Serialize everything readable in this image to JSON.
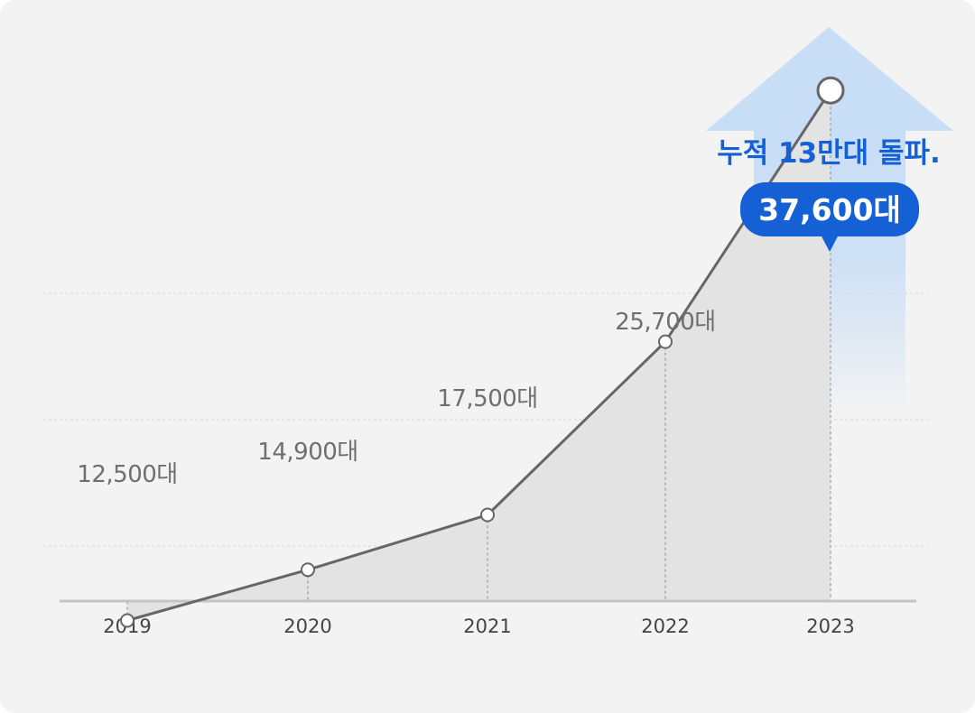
{
  "chart_data": {
    "type": "area",
    "categories": [
      "2019",
      "2020",
      "2021",
      "2022",
      "2023"
    ],
    "values": [
      12500,
      14900,
      17500,
      25700,
      37600
    ],
    "data_labels": [
      "12,500대",
      "14,900대",
      "17,500대",
      "25,700대",
      "37,600대"
    ],
    "ylim": [
      10000,
      40000
    ],
    "grid": true,
    "highlight_index": 4
  },
  "headline": "누적 13만대 돌파.",
  "colors": {
    "line": "#666666",
    "area": "#e3e3e3",
    "accent": "#1560d4",
    "arrow": "#c8ddf6",
    "grid": "#d6d6d6",
    "baseline": "#c4c4c4"
  }
}
